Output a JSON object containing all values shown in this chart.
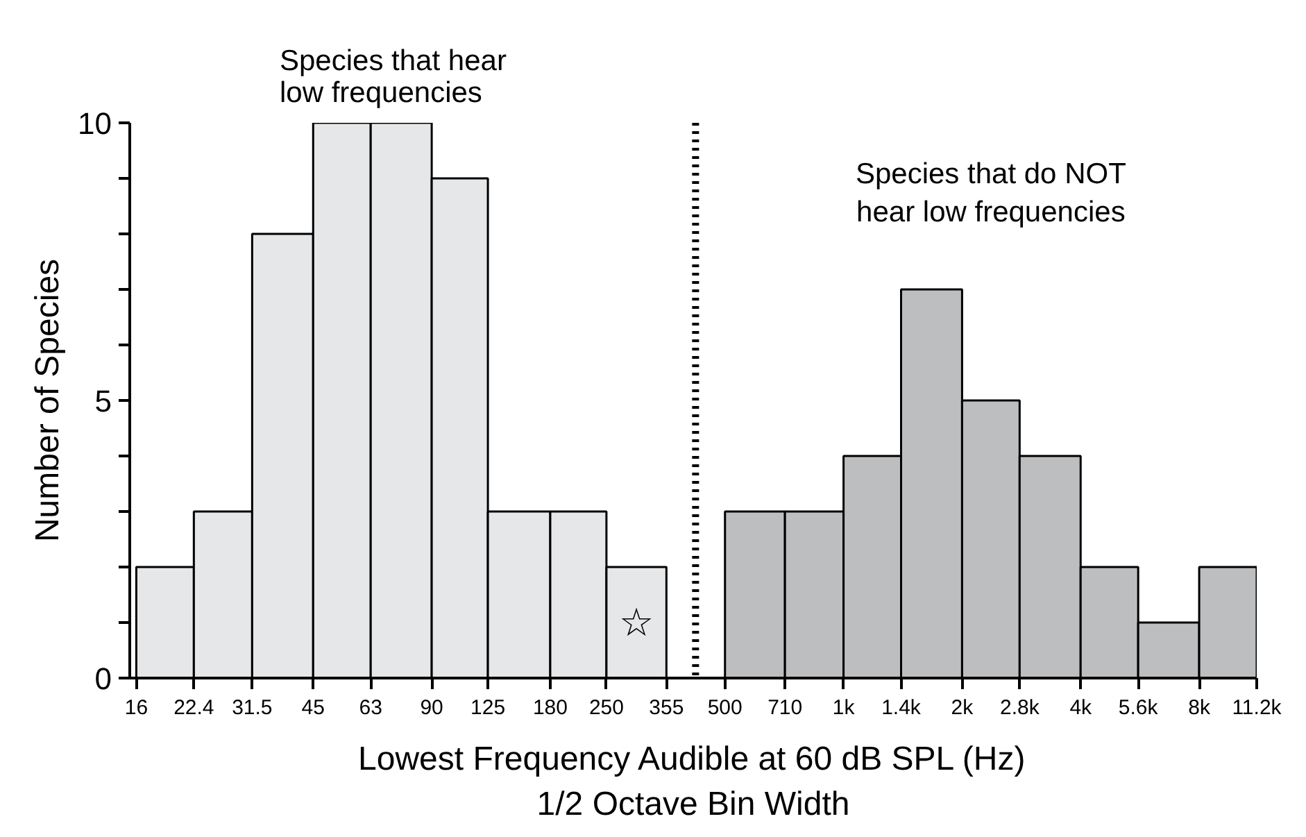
{
  "chart_data": {
    "type": "histogram",
    "xlabel": "Lowest Frequency Audible at 60 dB SPL (Hz)\n1/2 Octave Bin Width",
    "ylabel": "Number of Species",
    "bins": [
      16,
      22.4,
      31.5,
      45,
      63,
      90,
      125,
      180,
      250,
      355,
      500,
      710,
      1000,
      1400,
      2000,
      2800,
      4000,
      5600,
      8000,
      11200
    ],
    "values": [
      2,
      3,
      8,
      10,
      10,
      9,
      3,
      3,
      2,
      null,
      3,
      3,
      4,
      7,
      5,
      4,
      2,
      1,
      2
    ],
    "colors": [
      "#e6e7e8",
      "#e6e7e8",
      "#e6e7e8",
      "#e6e7e8",
      "#e6e7e8",
      "#e6e7e8",
      "#e6e7e8",
      "#e6e7e8",
      "#e6e7e8",
      null,
      "#bcbec0",
      "#bcbec0",
      "#bcbec0",
      "#bcbec0",
      "#bcbec0",
      "#bcbec0",
      "#bcbec0",
      "#bcbec0",
      "#bcbec0"
    ],
    "log": "x",
    "xlim": [
      15.4,
      11200
    ],
    "ylim": [
      0,
      10
    ],
    "xticks": [
      16,
      22.4,
      31.5,
      45,
      63,
      90,
      125,
      180,
      250,
      355,
      500,
      710,
      {
        "value": 1000,
        "label": "1k"
      },
      {
        "value": 1400,
        "label": "1.4k"
      },
      {
        "value": 2000,
        "label": "2k"
      },
      {
        "value": 2800,
        "label": "2.8k"
      },
      {
        "value": 4000,
        "label": "4k"
      },
      {
        "value": 5600,
        "label": "5.6k"
      },
      {
        "value": 8000,
        "label": "8k"
      },
      {
        "value": 11200,
        "label": "11.2k"
      }
    ],
    "yticks": [
      0,
      {
        "value": 1,
        "label": null
      },
      {
        "value": 2,
        "label": null
      },
      {
        "value": 3,
        "label": null
      },
      {
        "value": 4,
        "label": null
      },
      5,
      {
        "value": 6,
        "label": null
      },
      {
        "value": 7,
        "label": null
      },
      {
        "value": 8,
        "label": null
      },
      {
        "value": 9,
        "label": null
      },
      10
    ],
    "ref_lines": [
      {
        "axis": "x",
        "value": 421,
        "color": "#000000",
        "line_style": "dotted"
      }
    ],
    "annotations": [
      "Species that hear\nlow frequencies",
      "Species that do NOT\nhear low frequencies",
      "☆"
    ],
    "grid": false
  }
}
